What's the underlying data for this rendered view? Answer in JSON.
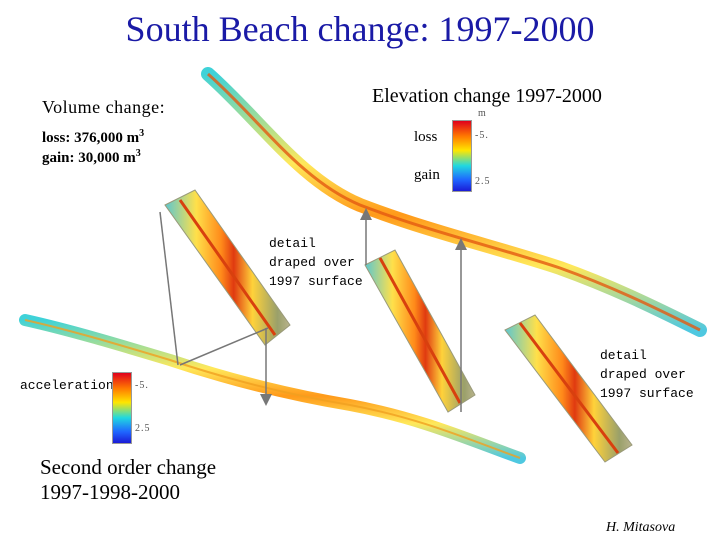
{
  "title": "South Beach change: 1997-2000",
  "volume_change": {
    "heading": "Volume change:",
    "loss_prefix": "loss: 376,000 m",
    "gain_prefix": "gain: 30,000 m",
    "exponent": "3"
  },
  "elevation_legend": {
    "title": "Elevation change 1997-2000",
    "unit": "m",
    "label_loss": "loss",
    "label_gain": "gain",
    "tick_top": "-5.",
    "tick_bottom": "2.5",
    "colors": [
      "#e0001c",
      "#ff7a00",
      "#ffe600",
      "#20d8e0",
      "#1f66ff",
      "#1b1bd6"
    ]
  },
  "detail_label_1": [
    "detail",
    "draped over",
    "1997 surface"
  ],
  "detail_label_2": [
    "detail",
    "draped over",
    "1997 surface"
  ],
  "acceleration_legend": {
    "label": "acceleration",
    "tick_top": "-5.",
    "tick_bottom": "2.5"
  },
  "second_order": {
    "line1": "Second order change",
    "line2": "1997-1998-2000"
  },
  "credit": "H. Mitasova"
}
